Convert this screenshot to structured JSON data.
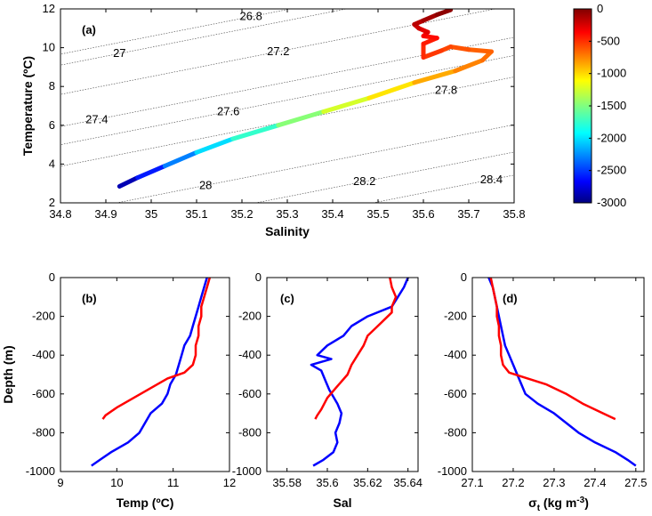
{
  "chart_data": [
    {
      "type": "scatter",
      "panel_label": "(a)",
      "xlabel": "Salinity",
      "ylabel": "Temperature (ºC)",
      "xlim": [
        34.8,
        35.8
      ],
      "ylim": [
        2,
        12
      ],
      "xticks": [
        "34.8",
        "34.9",
        "35",
        "35.1",
        "35.2",
        "35.3",
        "35.4",
        "35.5",
        "35.6",
        "35.7",
        "35.8"
      ],
      "yticks": [
        "2",
        "4",
        "6",
        "8",
        "10",
        "12"
      ],
      "density_contours": [
        {
          "label": "26.8",
          "label_at": [
            35.22,
            11.6
          ]
        },
        {
          "label": "27",
          "label_at": [
            34.93,
            9.7
          ]
        },
        {
          "label": "27.2",
          "label_at": [
            35.28,
            9.8
          ]
        },
        {
          "label": "27.4",
          "label_at": [
            34.88,
            6.3
          ]
        },
        {
          "label": "27.6",
          "label_at": [
            35.17,
            6.7
          ]
        },
        {
          "label": "27.8",
          "label_at": [
            35.65,
            7.8
          ]
        },
        {
          "label": "28",
          "label_at": [
            35.12,
            2.9
          ]
        },
        {
          "label": "28.2",
          "label_at": [
            35.47,
            3.1
          ]
        },
        {
          "label": "28.4",
          "label_at": [
            35.75,
            3.2
          ]
        }
      ],
      "colorbar": {
        "range": [
          -3000,
          0
        ],
        "ticks": [
          "0",
          "-500",
          "-1000",
          "-1500",
          "-2000",
          "-2500",
          "-3000"
        ],
        "colormap": "jet"
      },
      "profile": [
        {
          "s": 34.93,
          "t": 2.85,
          "d": -3000
        },
        {
          "s": 34.97,
          "t": 3.3,
          "d": -2700
        },
        {
          "s": 35.03,
          "t": 3.9,
          "d": -2400
        },
        {
          "s": 35.1,
          "t": 4.6,
          "d": -2100
        },
        {
          "s": 35.18,
          "t": 5.3,
          "d": -1850
        },
        {
          "s": 35.28,
          "t": 6.0,
          "d": -1600
        },
        {
          "s": 35.38,
          "t": 6.7,
          "d": -1350
        },
        {
          "s": 35.48,
          "t": 7.4,
          "d": -1150
        },
        {
          "s": 35.58,
          "t": 8.2,
          "d": -950
        },
        {
          "s": 35.67,
          "t": 8.8,
          "d": -800
        },
        {
          "s": 35.73,
          "t": 9.35,
          "d": -720
        },
        {
          "s": 35.75,
          "t": 9.8,
          "d": -680
        },
        {
          "s": 35.7,
          "t": 9.9,
          "d": -640
        },
        {
          "s": 35.66,
          "t": 10.05,
          "d": -600
        },
        {
          "s": 35.64,
          "t": 9.85,
          "d": -560
        },
        {
          "s": 35.6,
          "t": 9.5,
          "d": -520
        },
        {
          "s": 35.6,
          "t": 10.2,
          "d": -480
        },
        {
          "s": 35.63,
          "t": 10.5,
          "d": -430
        },
        {
          "s": 35.6,
          "t": 10.6,
          "d": -380
        },
        {
          "s": 35.61,
          "t": 10.8,
          "d": -320
        },
        {
          "s": 35.59,
          "t": 11.0,
          "d": -260
        },
        {
          "s": 35.58,
          "t": 11.2,
          "d": -200
        },
        {
          "s": 35.6,
          "t": 11.4,
          "d": -140
        },
        {
          "s": 35.63,
          "t": 11.7,
          "d": -80
        },
        {
          "s": 35.66,
          "t": 11.95,
          "d": 0
        }
      ]
    },
    {
      "type": "line",
      "panel_label": "(b)",
      "xlabel": "Temp (ºC)",
      "ylabel": "Depth (m)",
      "xlim": [
        9,
        12
      ],
      "ylim": [
        -1000,
        0
      ],
      "xticks": [
        "9",
        "10",
        "11",
        "12"
      ],
      "yticks": [
        "0",
        "-200",
        "-400",
        "-600",
        "-800",
        "-1000"
      ],
      "series": [
        {
          "color": "#0000ff",
          "points": [
            [
              11.6,
              0
            ],
            [
              11.55,
              -50
            ],
            [
              11.5,
              -100
            ],
            [
              11.45,
              -150
            ],
            [
              11.4,
              -200
            ],
            [
              11.35,
              -250
            ],
            [
              11.3,
              -300
            ],
            [
              11.2,
              -350
            ],
            [
              11.15,
              -400
            ],
            [
              11.1,
              -450
            ],
            [
              11.05,
              -500
            ],
            [
              10.95,
              -550
            ],
            [
              10.9,
              -600
            ],
            [
              10.8,
              -650
            ],
            [
              10.6,
              -700
            ],
            [
              10.5,
              -750
            ],
            [
              10.4,
              -800
            ],
            [
              10.2,
              -850
            ],
            [
              9.9,
              -900
            ],
            [
              9.7,
              -940
            ],
            [
              9.55,
              -970
            ]
          ]
        },
        {
          "color": "#ff0000",
          "points": [
            [
              11.65,
              0
            ],
            [
              11.6,
              -50
            ],
            [
              11.55,
              -100
            ],
            [
              11.5,
              -150
            ],
            [
              11.5,
              -200
            ],
            [
              11.45,
              -250
            ],
            [
              11.45,
              -300
            ],
            [
              11.4,
              -350
            ],
            [
              11.4,
              -400
            ],
            [
              11.35,
              -450
            ],
            [
              11.2,
              -490
            ],
            [
              10.9,
              -520
            ],
            [
              10.6,
              -570
            ],
            [
              10.3,
              -620
            ],
            [
              10.0,
              -670
            ],
            [
              9.8,
              -710
            ],
            [
              9.75,
              -730
            ]
          ]
        }
      ]
    },
    {
      "type": "line",
      "panel_label": "(c)",
      "xlabel": "Sal",
      "ylabel": "",
      "xlim": [
        35.57,
        35.645
      ],
      "ylim": [
        -1000,
        0
      ],
      "xticks": [
        "35.58",
        "35.6",
        "35.62",
        "35.64"
      ],
      "yticks": [
        "0",
        "-200",
        "-400",
        "-600",
        "-800",
        "-1000"
      ],
      "series": [
        {
          "color": "#0000ff",
          "points": [
            [
              35.64,
              0
            ],
            [
              35.638,
              -50
            ],
            [
              35.635,
              -100
            ],
            [
              35.632,
              -150
            ],
            [
              35.62,
              -200
            ],
            [
              35.612,
              -250
            ],
            [
              35.608,
              -300
            ],
            [
              35.6,
              -350
            ],
            [
              35.595,
              -400
            ],
            [
              35.602,
              -420
            ],
            [
              35.592,
              -450
            ],
            [
              35.597,
              -480
            ],
            [
              35.599,
              -530
            ],
            [
              35.601,
              -580
            ],
            [
              35.605,
              -650
            ],
            [
              35.607,
              -700
            ],
            [
              35.606,
              -750
            ],
            [
              35.604,
              -800
            ],
            [
              35.605,
              -850
            ],
            [
              35.603,
              -900
            ],
            [
              35.598,
              -940
            ],
            [
              35.593,
              -970
            ]
          ]
        },
        {
          "color": "#ff0000",
          "points": [
            [
              35.631,
              0
            ],
            [
              35.632,
              -50
            ],
            [
              35.634,
              -100
            ],
            [
              35.632,
              -150
            ],
            [
              35.632,
              -180
            ],
            [
              35.625,
              -250
            ],
            [
              35.62,
              -300
            ],
            [
              35.618,
              -350
            ],
            [
              35.615,
              -400
            ],
            [
              35.612,
              -450
            ],
            [
              35.61,
              -500
            ],
            [
              35.605,
              -560
            ],
            [
              35.6,
              -620
            ],
            [
              35.597,
              -680
            ],
            [
              35.595,
              -710
            ],
            [
              35.594,
              -730
            ]
          ]
        }
      ]
    },
    {
      "type": "line",
      "panel_label": "(d)",
      "xlabel": "σt (kg m-3)",
      "ylabel": "",
      "xlim": [
        27.1,
        27.52
      ],
      "ylim": [
        -1000,
        0
      ],
      "xticks": [
        "27.1",
        "27.2",
        "27.3",
        "27.4",
        "27.5"
      ],
      "yticks": [
        "0",
        "-200",
        "-400",
        "-600",
        "-800",
        "-1000"
      ],
      "series": [
        {
          "color": "#0000ff",
          "points": [
            [
              27.14,
              0
            ],
            [
              27.15,
              -50
            ],
            [
              27.155,
              -100
            ],
            [
              27.16,
              -150
            ],
            [
              27.165,
              -200
            ],
            [
              27.17,
              -250
            ],
            [
              27.175,
              -300
            ],
            [
              27.18,
              -350
            ],
            [
              27.19,
              -400
            ],
            [
              27.2,
              -450
            ],
            [
              27.21,
              -500
            ],
            [
              27.22,
              -550
            ],
            [
              27.23,
              -600
            ],
            [
              27.26,
              -650
            ],
            [
              27.3,
              -700
            ],
            [
              27.33,
              -750
            ],
            [
              27.36,
              -800
            ],
            [
              27.4,
              -850
            ],
            [
              27.45,
              -900
            ],
            [
              27.48,
              -940
            ],
            [
              27.5,
              -970
            ]
          ]
        },
        {
          "color": "#ff0000",
          "points": [
            [
              27.145,
              0
            ],
            [
              27.15,
              -50
            ],
            [
              27.155,
              -100
            ],
            [
              27.16,
              -150
            ],
            [
              27.16,
              -200
            ],
            [
              27.165,
              -250
            ],
            [
              27.165,
              -300
            ],
            [
              27.17,
              -350
            ],
            [
              27.17,
              -400
            ],
            [
              27.175,
              -450
            ],
            [
              27.19,
              -490
            ],
            [
              27.22,
              -510
            ],
            [
              27.28,
              -550
            ],
            [
              27.33,
              -600
            ],
            [
              27.37,
              -650
            ],
            [
              27.42,
              -700
            ],
            [
              27.45,
              -730
            ]
          ]
        }
      ]
    }
  ]
}
